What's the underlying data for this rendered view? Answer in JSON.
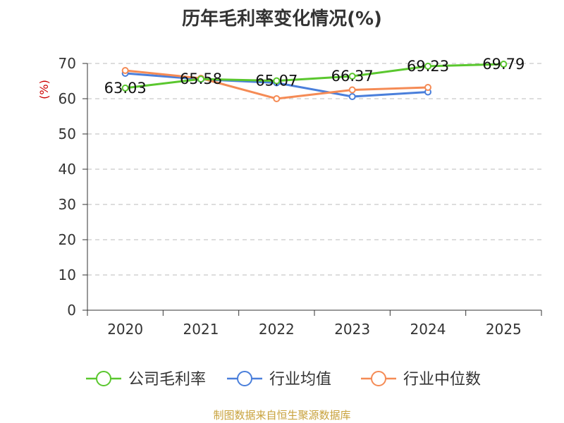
{
  "chart_data": {
    "type": "line",
    "title": "历年毛利率变化情况(%)",
    "ylabel": "(%)",
    "xlabel": "",
    "categories": [
      "2020",
      "2021",
      "2022",
      "2023",
      "2024",
      "2025"
    ],
    "ylim": [
      0,
      70
    ],
    "yticks": [
      0,
      10,
      20,
      30,
      40,
      50,
      60,
      70
    ],
    "grid": true,
    "legend_position": "bottom",
    "series": [
      {
        "name": "公司毛利率",
        "color": "#5ac72e",
        "values": [
          63.03,
          65.58,
          65.07,
          66.37,
          69.23,
          69.79
        ],
        "data_labels": [
          "63.03",
          "65.58",
          "65.07",
          "66.37",
          "69.23",
          "69.79"
        ]
      },
      {
        "name": "行业均值",
        "color": "#4a7fdb",
        "values": [
          67.2,
          65.5,
          64.5,
          60.6,
          61.9,
          null
        ]
      },
      {
        "name": "行业中位数",
        "color": "#f58b55",
        "values": [
          68.0,
          65.8,
          60.0,
          62.5,
          63.2,
          null
        ]
      }
    ]
  },
  "footer": {
    "source": "制图数据来自恒生聚源数据库"
  }
}
